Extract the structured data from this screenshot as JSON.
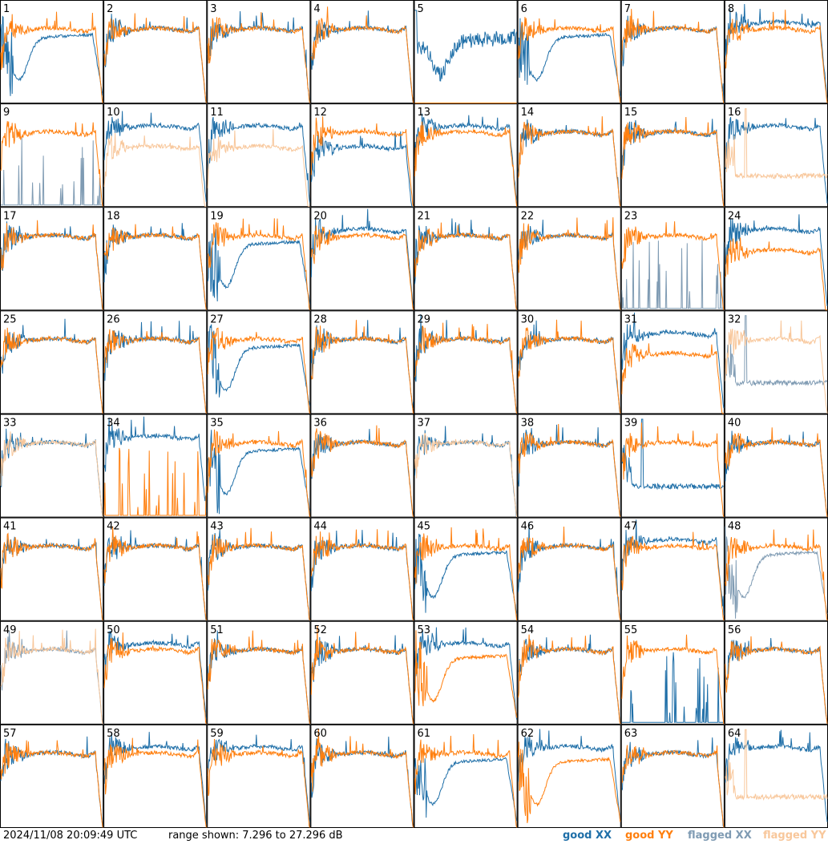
{
  "footer": {
    "timestamp": "2024/11/08 20:09:49 UTC",
    "range": "range shown: 7.296 to 27.296 dB"
  },
  "legend": [
    {
      "label": "good XX",
      "color": "#1f6fa8"
    },
    {
      "label": "good YY",
      "color": "#ff7f0e"
    },
    {
      "label": "flagged XX",
      "color": "#7f9bb3"
    },
    {
      "label": "flagged YY",
      "color": "#f8c79b"
    }
  ],
  "chart_data": {
    "type": "line",
    "grid": {
      "rows": 8,
      "cols": 8
    },
    "ylim": [
      7.296,
      27.296
    ],
    "yunit": "dB",
    "panels": [
      {
        "id": "1",
        "xx": "D",
        "yy": "A",
        "xxf": false,
        "yyf": false
      },
      {
        "id": "2",
        "xx": "A",
        "yy": "A",
        "xxf": false,
        "yyf": false
      },
      {
        "id": "3",
        "xx": "A",
        "yy": "A",
        "xxf": false,
        "yyf": false
      },
      {
        "id": "4",
        "xx": "A",
        "yy": "A",
        "xxf": false,
        "yyf": false
      },
      {
        "id": "5",
        "xx": "E",
        "yy": "F",
        "xxf": false,
        "yyf": false
      },
      {
        "id": "6",
        "xx": "D",
        "yy": "A",
        "xxf": false,
        "yyf": false
      },
      {
        "id": "7",
        "xx": "A",
        "yy": "A",
        "xxf": false,
        "yyf": false
      },
      {
        "id": "8",
        "xx": "B",
        "yy": "A",
        "xxf": false,
        "yyf": false
      },
      {
        "id": "9",
        "xx": "S",
        "yy": "A",
        "xxf": true,
        "yyf": false
      },
      {
        "id": "10",
        "xx": "B",
        "yy": "C",
        "xxf": false,
        "yyf": true
      },
      {
        "id": "11",
        "xx": "B",
        "yy": "C",
        "xxf": false,
        "yyf": true
      },
      {
        "id": "12",
        "xx": "C",
        "yy": "A",
        "xxf": false,
        "yyf": false
      },
      {
        "id": "13",
        "xx": "B",
        "yy": "A",
        "xxf": false,
        "yyf": false
      },
      {
        "id": "14",
        "xx": "A",
        "yy": "A",
        "xxf": false,
        "yyf": false
      },
      {
        "id": "15",
        "xx": "A",
        "yy": "A",
        "xxf": false,
        "yyf": false
      },
      {
        "id": "16",
        "xx": "B",
        "yy": "L",
        "xxf": false,
        "yyf": true
      },
      {
        "id": "17",
        "xx": "A",
        "yy": "A",
        "xxf": false,
        "yyf": false
      },
      {
        "id": "18",
        "xx": "A",
        "yy": "A",
        "xxf": false,
        "yyf": false
      },
      {
        "id": "19",
        "xx": "D",
        "yy": "A",
        "xxf": false,
        "yyf": false
      },
      {
        "id": "20",
        "xx": "B",
        "yy": "A",
        "xxf": false,
        "yyf": false
      },
      {
        "id": "21",
        "xx": "A",
        "yy": "A",
        "xxf": false,
        "yyf": false
      },
      {
        "id": "22",
        "xx": "A",
        "yy": "A",
        "xxf": false,
        "yyf": false
      },
      {
        "id": "23",
        "xx": "S",
        "yy": "A",
        "xxf": true,
        "yyf": false
      },
      {
        "id": "24",
        "xx": "B",
        "yy": "C",
        "xxf": false,
        "yyf": false
      },
      {
        "id": "25",
        "xx": "A",
        "yy": "A",
        "xxf": false,
        "yyf": false
      },
      {
        "id": "26",
        "xx": "A",
        "yy": "A",
        "xxf": false,
        "yyf": false
      },
      {
        "id": "27",
        "xx": "D",
        "yy": "A",
        "xxf": false,
        "yyf": false
      },
      {
        "id": "28",
        "xx": "A",
        "yy": "A",
        "xxf": false,
        "yyf": false
      },
      {
        "id": "29",
        "xx": "A",
        "yy": "A",
        "xxf": false,
        "yyf": false
      },
      {
        "id": "30",
        "xx": "A",
        "yy": "A",
        "xxf": false,
        "yyf": false
      },
      {
        "id": "31",
        "xx": "B",
        "yy": "C",
        "xxf": false,
        "yyf": false
      },
      {
        "id": "32",
        "xx": "L",
        "yy": "A",
        "xxf": true,
        "yyf": true
      },
      {
        "id": "33",
        "xx": "A",
        "yy": "A",
        "xxf": false,
        "yyf": true
      },
      {
        "id": "34",
        "xx": "B",
        "yy": "S",
        "xxf": false,
        "yyf": false
      },
      {
        "id": "35",
        "xx": "D",
        "yy": "A",
        "xxf": false,
        "yyf": false
      },
      {
        "id": "36",
        "xx": "A",
        "yy": "A",
        "xxf": false,
        "yyf": false
      },
      {
        "id": "37",
        "xx": "A",
        "yy": "A",
        "xxf": false,
        "yyf": true
      },
      {
        "id": "38",
        "xx": "A",
        "yy": "A",
        "xxf": false,
        "yyf": false
      },
      {
        "id": "39",
        "xx": "L",
        "yy": "A",
        "xxf": false,
        "yyf": false
      },
      {
        "id": "40",
        "xx": "A",
        "yy": "A",
        "xxf": false,
        "yyf": false
      },
      {
        "id": "41",
        "xx": "A",
        "yy": "A",
        "xxf": false,
        "yyf": false
      },
      {
        "id": "42",
        "xx": "A",
        "yy": "A",
        "xxf": false,
        "yyf": false
      },
      {
        "id": "43",
        "xx": "A",
        "yy": "A",
        "xxf": false,
        "yyf": false
      },
      {
        "id": "44",
        "xx": "A",
        "yy": "A",
        "xxf": false,
        "yyf": false
      },
      {
        "id": "45",
        "xx": "D",
        "yy": "A",
        "xxf": false,
        "yyf": false
      },
      {
        "id": "46",
        "xx": "A",
        "yy": "A",
        "xxf": false,
        "yyf": false
      },
      {
        "id": "47",
        "xx": "B",
        "yy": "A",
        "xxf": false,
        "yyf": false
      },
      {
        "id": "48",
        "xx": "D",
        "yy": "A",
        "xxf": true,
        "yyf": false
      },
      {
        "id": "49",
        "xx": "A",
        "yy": "A",
        "xxf": true,
        "yyf": true
      },
      {
        "id": "50",
        "xx": "B",
        "yy": "A",
        "xxf": false,
        "yyf": false
      },
      {
        "id": "51",
        "xx": "A",
        "yy": "A",
        "xxf": false,
        "yyf": false
      },
      {
        "id": "52",
        "xx": "A",
        "yy": "A",
        "xxf": false,
        "yyf": false
      },
      {
        "id": "53",
        "xx": "B",
        "yy": "D",
        "xxf": false,
        "yyf": false
      },
      {
        "id": "54",
        "xx": "A",
        "yy": "A",
        "xxf": false,
        "yyf": false
      },
      {
        "id": "55",
        "xx": "S",
        "yy": "A",
        "xxf": false,
        "yyf": false
      },
      {
        "id": "56",
        "xx": "A",
        "yy": "A",
        "xxf": false,
        "yyf": false
      },
      {
        "id": "57",
        "xx": "A",
        "yy": "A",
        "xxf": false,
        "yyf": false
      },
      {
        "id": "58",
        "xx": "B",
        "yy": "A",
        "xxf": false,
        "yyf": false
      },
      {
        "id": "59",
        "xx": "B",
        "yy": "A",
        "xxf": false,
        "yyf": false
      },
      {
        "id": "60",
        "xx": "A",
        "yy": "A",
        "xxf": false,
        "yyf": false
      },
      {
        "id": "61",
        "xx": "D",
        "yy": "A",
        "xxf": false,
        "yyf": false
      },
      {
        "id": "62",
        "xx": "B",
        "yy": "D",
        "xxf": false,
        "yyf": false
      },
      {
        "id": "63",
        "xx": "A",
        "yy": "A",
        "xxf": false,
        "yyf": false
      },
      {
        "id": "64",
        "xx": "B",
        "yy": "L",
        "xxf": false,
        "yyf": true
      }
    ]
  }
}
